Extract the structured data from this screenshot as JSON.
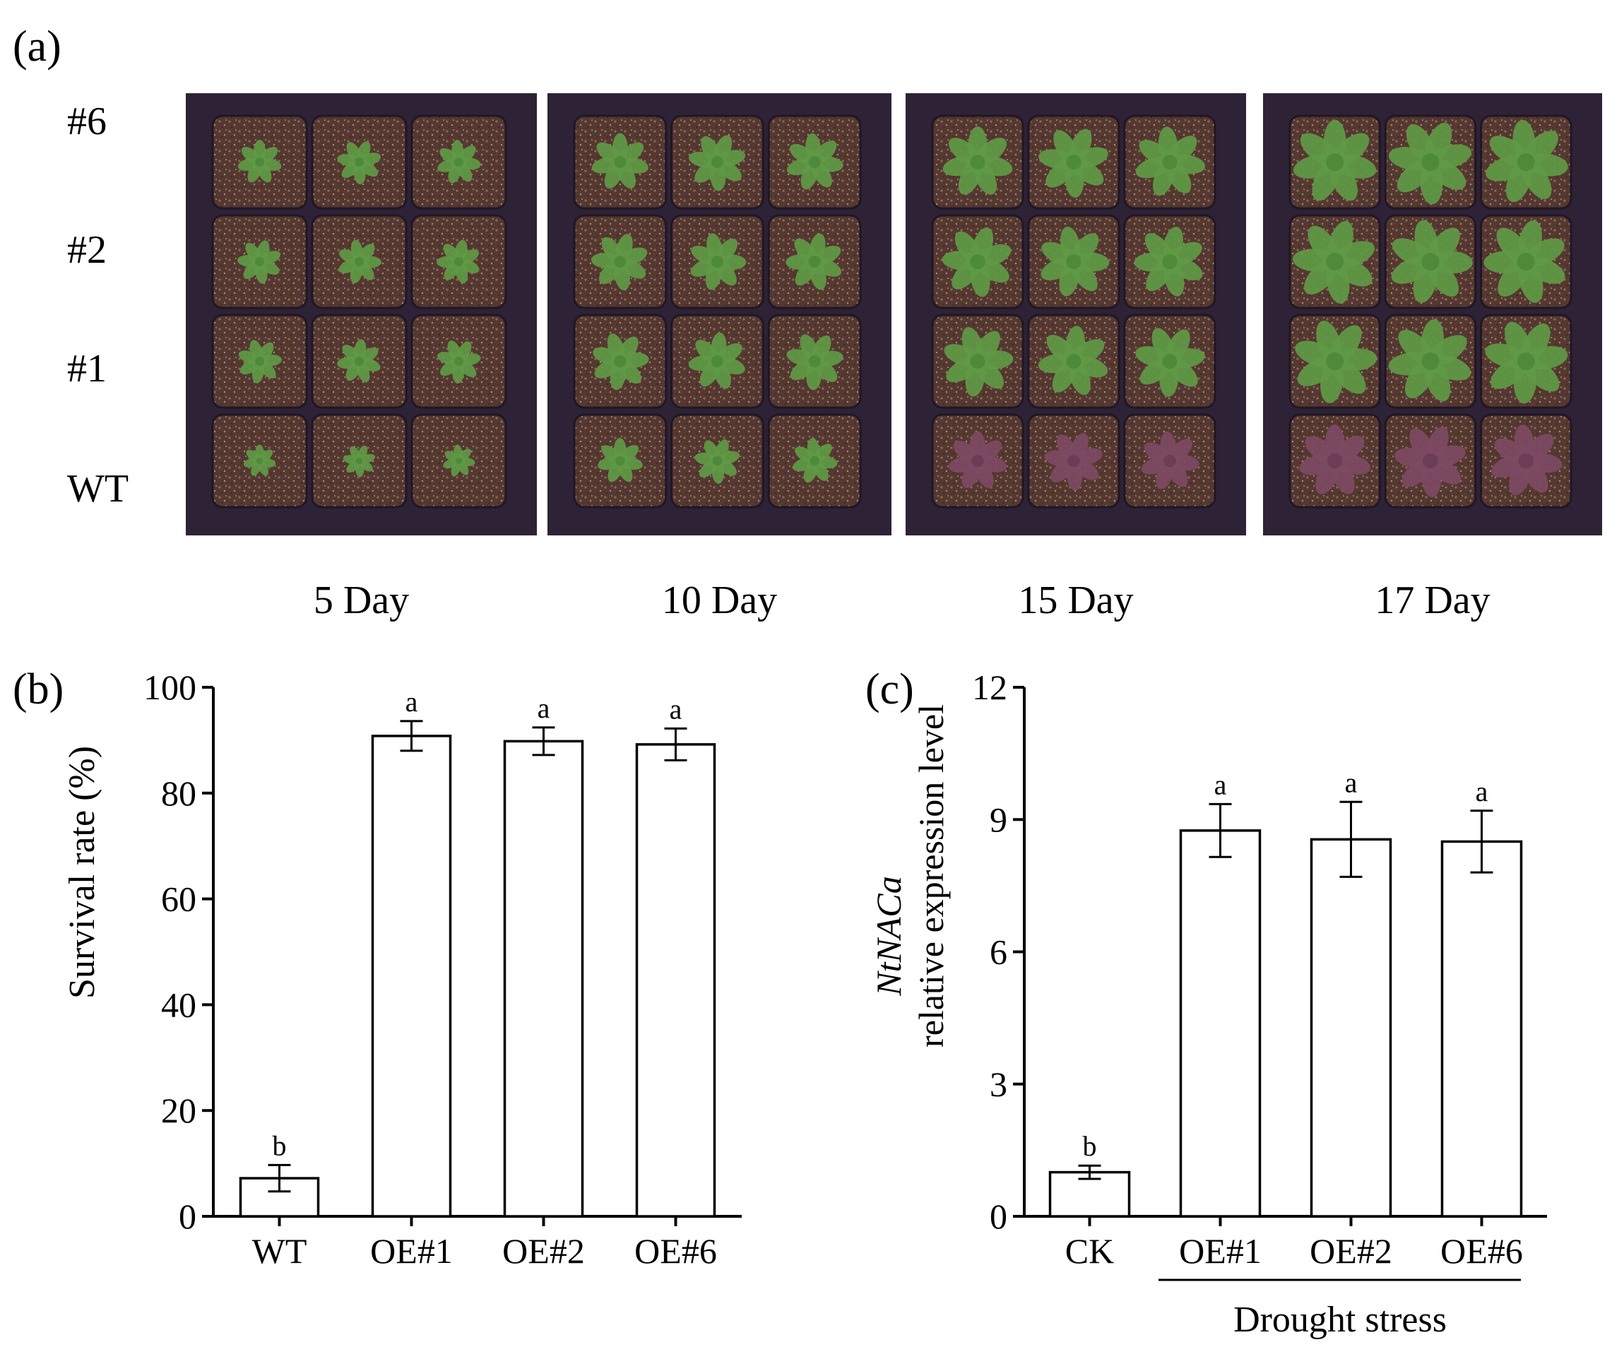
{
  "panel_a": {
    "label": "(a)",
    "rows": [
      {
        "label": "#6",
        "tone": "healthy"
      },
      {
        "label": "#2",
        "tone": "healthy"
      },
      {
        "label": "#1",
        "tone": "healthy"
      },
      {
        "label": "WT",
        "tone": "wilted"
      }
    ],
    "days": [
      "5 Day",
      "10 Day",
      "15 Day",
      "17 Day"
    ],
    "colors": {
      "tray": "#2e2236",
      "soil": "#5a3b32",
      "leaf": "#5f9a45",
      "leaf_stressed": "#7d4a63"
    }
  },
  "chart_data": [
    {
      "panel_label": "(b)",
      "type": "bar",
      "categories": [
        "WT",
        "OE#1",
        "OE#2",
        "OE#6"
      ],
      "values": [
        7.2,
        90.8,
        89.8,
        89.2
      ],
      "errors": [
        2.5,
        2.8,
        2.6,
        3.0
      ],
      "sig_letters": [
        "b",
        "a",
        "a",
        "a"
      ],
      "ylabel": "Survival rate (%)",
      "ylim": [
        0,
        100
      ],
      "yticks": [
        0,
        20,
        40,
        60,
        80,
        100
      ],
      "tick_labels": [
        "0",
        "20",
        "40",
        "60",
        "80",
        "100"
      ],
      "bar_fill": "#ffffff",
      "bar_stroke": "#000000"
    },
    {
      "panel_label": "(c)",
      "type": "bar",
      "categories": [
        "CK",
        "OE#1",
        "OE#2",
        "OE#6"
      ],
      "values": [
        1.0,
        8.75,
        8.55,
        8.5
      ],
      "errors": [
        0.15,
        0.6,
        0.85,
        0.7
      ],
      "sig_letters": [
        "b",
        "a",
        "a",
        "a"
      ],
      "ylabel_italic": "NtNACa",
      "ylabel": "relative expression level",
      "ylim": [
        0,
        12
      ],
      "yticks": [
        0,
        3,
        6,
        9,
        12
      ],
      "tick_labels": [
        "0",
        "3",
        "6",
        "9",
        "12"
      ],
      "group_label": "Drought stress",
      "bar_fill": "#ffffff",
      "bar_stroke": "#000000"
    }
  ]
}
